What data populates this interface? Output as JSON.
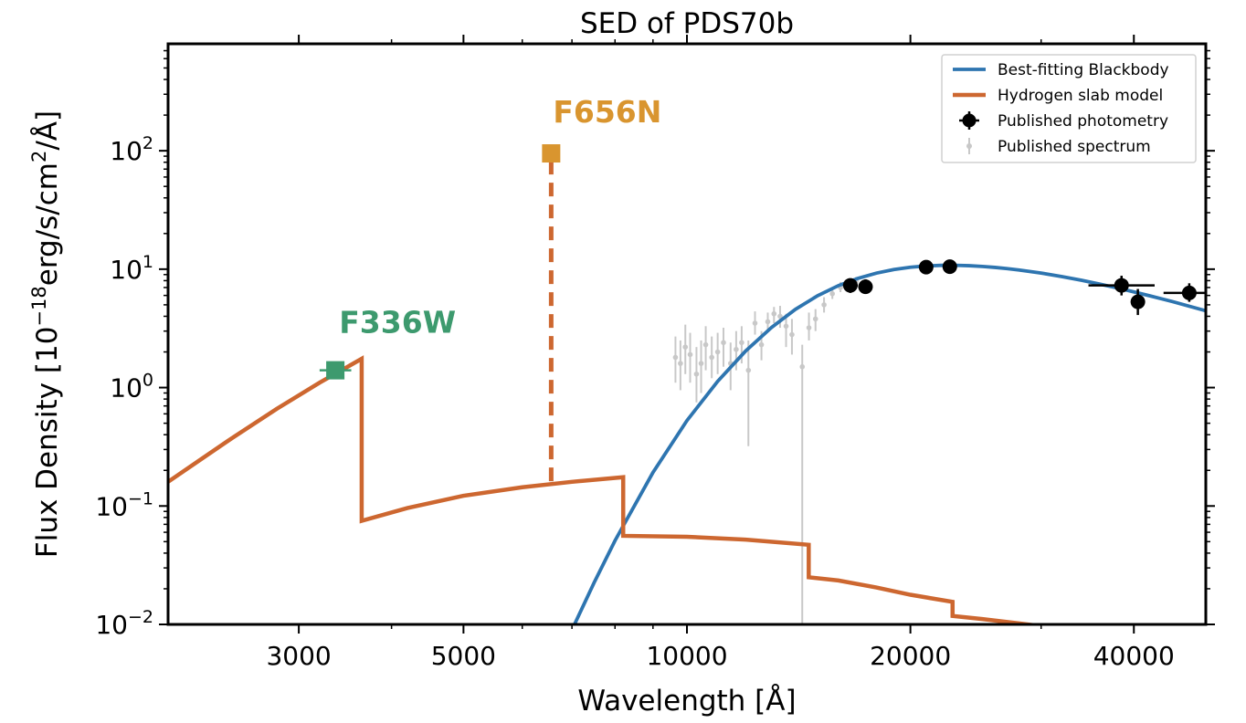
{
  "chart_data": {
    "type": "line",
    "title": "SED of PDS70b",
    "xlabel": "Wavelength [Å]",
    "ylabel_parts": {
      "pre": "Flux Density [10",
      "exp1": "−18",
      "mid": "erg/s/cm",
      "exp2": "2",
      "post": "/Å]"
    },
    "xscale": "log",
    "yscale": "log",
    "xlim": [
      2000,
      50000
    ],
    "ylim": [
      0.01,
      800
    ],
    "x_ticks": [
      {
        "value": 3000,
        "label": "3000"
      },
      {
        "value": 5000,
        "label": "5000"
      },
      {
        "value": 10000,
        "label": "10000"
      },
      {
        "value": 20000,
        "label": "20000"
      },
      {
        "value": 40000,
        "label": "40000"
      }
    ],
    "y_ticks": [
      {
        "value": 0.01,
        "base": "10",
        "exp": "−2"
      },
      {
        "value": 0.1,
        "base": "10",
        "exp": "−1"
      },
      {
        "value": 1,
        "base": "10",
        "exp": "0"
      },
      {
        "value": 10,
        "base": "10",
        "exp": "1"
      },
      {
        "value": 100,
        "base": "10",
        "exp": "2"
      }
    ],
    "grid": false,
    "legend_position": "top-right",
    "legend": [
      {
        "label": "Best-fitting Blackbody",
        "kind": "line",
        "color": "#2e75b0"
      },
      {
        "label": "Hydrogen slab model",
        "kind": "line",
        "color": "#cd6730"
      },
      {
        "label": "Published photometry",
        "kind": "marker",
        "color": "#000000"
      },
      {
        "label": "Published spectrum",
        "kind": "small-marker",
        "color": "#c8c8c8"
      }
    ],
    "colors": {
      "blackbody": "#2e75b0",
      "slab": "#cd6730",
      "photometry": "#000000",
      "spectrum": "#c8c8c8",
      "f336w": "#3d9a6e",
      "f656n": "#d9952f"
    },
    "blackbody": {
      "x": [
        7000,
        7500,
        8000,
        9000,
        10000,
        11000,
        12000,
        13000,
        14000,
        15000,
        16000,
        17000,
        18000,
        19000,
        20000,
        21000,
        22000,
        23000,
        24000,
        25000,
        26000,
        27000,
        28000,
        30000,
        32000,
        34000,
        36000,
        38000,
        40000,
        42000,
        45000,
        50000
      ],
      "y": [
        0.009,
        0.0226,
        0.051,
        0.192,
        0.526,
        1.13,
        2.04,
        3.22,
        4.58,
        5.97,
        7.27,
        8.37,
        9.26,
        9.93,
        10.38,
        10.65,
        10.77,
        10.78,
        10.7,
        10.55,
        10.35,
        10.11,
        9.84,
        9.27,
        8.66,
        8.06,
        7.48,
        6.94,
        6.43,
        5.96,
        5.34,
        4.45
      ]
    },
    "hydrogen_slab": {
      "x": [
        2000,
        2400,
        2800,
        3200,
        3646,
        3646,
        4200,
        5000,
        6000,
        7000,
        8206,
        8206,
        10000,
        12000,
        14590,
        14590,
        16000,
        18000,
        20000,
        22794,
        22794,
        25000,
        28000,
        32000
      ],
      "y": [
        0.16,
        0.35,
        0.66,
        1.1,
        1.75,
        0.075,
        0.096,
        0.122,
        0.144,
        0.16,
        0.175,
        0.056,
        0.055,
        0.052,
        0.047,
        0.025,
        0.0235,
        0.0205,
        0.0178,
        0.0155,
        0.0118,
        0.0111,
        0.0102,
        0.0092
      ]
    },
    "f656n_line": {
      "x": 6563,
      "y_bottom": 0.162,
      "y_top": 95
    },
    "annotations": [
      {
        "text": "F336W",
        "x": 3360,
        "y": 1.4,
        "x_err": [
          3200,
          3530
        ],
        "label_x": 3400,
        "label_y": 3.6,
        "marker": "square"
      },
      {
        "text": "F656N",
        "x": 6563,
        "y": 95,
        "label_x": 6600,
        "label_y": 215,
        "marker": "square"
      }
    ],
    "photometry": [
      {
        "x": 16600,
        "y": 7.3,
        "xerr": 0.01,
        "yerr_lo": 6.3,
        "yerr_hi": 8.3
      },
      {
        "x": 17400,
        "y": 7.1,
        "xerr": 0.008,
        "yerr_lo": 6.2,
        "yerr_hi": 8.2
      },
      {
        "x": 21000,
        "y": 10.4,
        "xerr": 0.008,
        "yerr_lo": 9.5,
        "yerr_hi": 11.4
      },
      {
        "x": 22600,
        "y": 10.5,
        "xerr": 0.008,
        "yerr_lo": 9.6,
        "yerr_hi": 11.5
      },
      {
        "x": 38500,
        "y": 7.3,
        "xerr": 0.045,
        "yerr_lo": 6.0,
        "yerr_hi": 8.8
      },
      {
        "x": 40500,
        "y": 5.3,
        "xerr": 0.008,
        "yerr_lo": 4.1,
        "yerr_hi": 6.8
      },
      {
        "x": 47500,
        "y": 6.3,
        "xerr": 0.035,
        "yerr_lo": 5.3,
        "yerr_hi": 7.6
      }
    ],
    "spectrum": [
      {
        "x": 9650,
        "y": 1.8,
        "lo": 1.1,
        "hi": 2.7
      },
      {
        "x": 9800,
        "y": 1.6,
        "lo": 0.95,
        "hi": 2.5
      },
      {
        "x": 9950,
        "y": 2.2,
        "lo": 1.3,
        "hi": 3.4
      },
      {
        "x": 10100,
        "y": 1.9,
        "lo": 1.1,
        "hi": 2.9
      },
      {
        "x": 10300,
        "y": 1.3,
        "lo": 0.75,
        "hi": 2.2
      },
      {
        "x": 10450,
        "y": 1.6,
        "lo": 0.9,
        "hi": 2.5
      },
      {
        "x": 10600,
        "y": 2.3,
        "lo": 1.4,
        "hi": 3.3
      },
      {
        "x": 10800,
        "y": 1.8,
        "lo": 1.2,
        "hi": 2.7
      },
      {
        "x": 11000,
        "y": 2.0,
        "lo": 1.3,
        "hi": 2.9
      },
      {
        "x": 11200,
        "y": 2.4,
        "lo": 1.5,
        "hi": 3.2
      },
      {
        "x": 11450,
        "y": 1.6,
        "lo": 0.95,
        "hi": 2.4
      },
      {
        "x": 11650,
        "y": 2.1,
        "lo": 1.4,
        "hi": 3.0
      },
      {
        "x": 11850,
        "y": 2.4,
        "lo": 1.6,
        "hi": 3.3
      },
      {
        "x": 12100,
        "y": 1.4,
        "lo": 0.32,
        "hi": 2.5
      },
      {
        "x": 12350,
        "y": 3.5,
        "lo": 2.8,
        "hi": 4.4
      },
      {
        "x": 12600,
        "y": 2.3,
        "lo": 1.7,
        "hi": 3.0
      },
      {
        "x": 12850,
        "y": 3.6,
        "lo": 3.0,
        "hi": 4.3
      },
      {
        "x": 13100,
        "y": 4.2,
        "lo": 3.5,
        "hi": 4.8
      },
      {
        "x": 13350,
        "y": 4.0,
        "lo": 3.2,
        "hi": 4.9
      },
      {
        "x": 13600,
        "y": 3.3,
        "lo": 2.2,
        "hi": 4.2
      },
      {
        "x": 13850,
        "y": 2.8,
        "lo": 1.9,
        "hi": 3.8
      },
      {
        "x": 14300,
        "y": 1.5,
        "lo": 0.01,
        "hi": 2.3
      },
      {
        "x": 14600,
        "y": 3.2,
        "lo": 2.5,
        "hi": 4.3
      },
      {
        "x": 14900,
        "y": 3.8,
        "lo": 3.0,
        "hi": 4.6
      },
      {
        "x": 15300,
        "y": 5.0,
        "lo": 4.3,
        "hi": 5.8
      },
      {
        "x": 15700,
        "y": 6.2,
        "lo": 5.6,
        "hi": 6.9
      },
      {
        "x": 16100,
        "y": 7.0,
        "lo": 6.4,
        "hi": 7.8
      },
      {
        "x": 16500,
        "y": 7.6,
        "lo": 7.0,
        "hi": 8.3
      },
      {
        "x": 16900,
        "y": 7.9,
        "lo": 7.3,
        "hi": 8.6
      }
    ]
  }
}
